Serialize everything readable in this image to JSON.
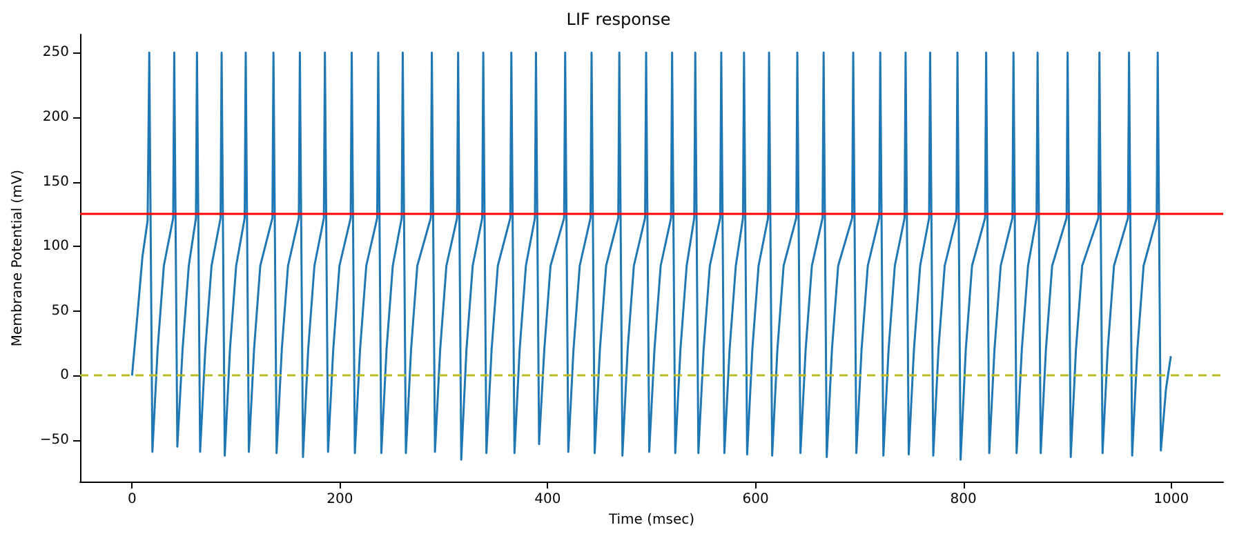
{
  "chart_data": {
    "type": "line",
    "title": "LIF response",
    "xlabel": "Time (msec)",
    "ylabel": "Membrane Potential (mV)",
    "xlim": [
      -50,
      1050
    ],
    "xticks": [
      0,
      200,
      400,
      600,
      800,
      1000
    ],
    "ylim": [
      -82,
      264
    ],
    "yticks": [
      -50,
      0,
      50,
      100,
      150,
      200,
      250
    ],
    "grid": false,
    "marker": "none",
    "line_style": "solid",
    "series": [
      {
        "color": "#1f77b4",
        "x": [
          0,
          5,
          10,
          15,
          16.6,
          19.6,
          24.6,
          30.6,
          39.6,
          40.6,
          43.6,
          48.6,
          54.6,
          61.5,
          62.5,
          65.5,
          70.5,
          76.5,
          85.2,
          86.2,
          89.2,
          94.2,
          100.2,
          108.4,
          109.4,
          112.4,
          117.4,
          123.4,
          135.1,
          136.1,
          139.1,
          144.1,
          150.1,
          160.5,
          161.5,
          164.5,
          169.5,
          175.5,
          184.6,
          185.6,
          188.6,
          193.6,
          199.6,
          210.4,
          211.4,
          214.4,
          219.4,
          225.4,
          235.9,
          236.9,
          239.9,
          244.9,
          250.9,
          259.5,
          260.5,
          263.5,
          268.5,
          274.5,
          287.5,
          288.5,
          291.5,
          296.5,
          302.5,
          312.8,
          313.8,
          316.8,
          321.8,
          327.8,
          337,
          338,
          341,
          346,
          352,
          364,
          365,
          368,
          373,
          379,
          387.7,
          388.7,
          391.7,
          396.7,
          402.7,
          415.8,
          416.8,
          419.8,
          424.8,
          430.8,
          441.2,
          442.2,
          445.2,
          450.2,
          456.2,
          467.9,
          468.9,
          471.9,
          476.9,
          482.9,
          493.7,
          494.7,
          497.7,
          502.7,
          508.7,
          518.7,
          519.7,
          522.7,
          527.7,
          533.7,
          541,
          542,
          545,
          550,
          556,
          566,
          567,
          570,
          575,
          581,
          587.9,
          588.9,
          591.9,
          596.9,
          602.9,
          612,
          613,
          616,
          621,
          627,
          639.2,
          640.2,
          643.2,
          648.2,
          654.2,
          664.5,
          665.5,
          668.5,
          673.5,
          679.5,
          693,
          694,
          697,
          702,
          708,
          719,
          720,
          723,
          728,
          734,
          743.4,
          744.4,
          747.4,
          752.4,
          758.4,
          767,
          768,
          771,
          776,
          782,
          793.3,
          794.3,
          797.3,
          802.3,
          808.3,
          820.9,
          821.9,
          824.9,
          829.9,
          835.9,
          847.2,
          848.2,
          851.2,
          856.2,
          862.2,
          870.4,
          871.4,
          874.4,
          879.4,
          885.4,
          899.3,
          900.3,
          903.3,
          908.3,
          914.3,
          929.9,
          930.9,
          933.9,
          938.9,
          944.9,
          958.4,
          959.4,
          962.4,
          967.4,
          973.4,
          986,
          987,
          990,
          995,
          999.6
        ],
        "values": [
          0,
          45,
          92,
          120,
          250,
          -59,
          20,
          85,
          122,
          250,
          -55,
          20,
          85,
          122,
          250,
          -59,
          20,
          85,
          122,
          250,
          -62,
          20,
          85,
          122,
          250,
          -59,
          20,
          85,
          122,
          250,
          -60,
          20,
          85,
          122,
          250,
          -63,
          20,
          85,
          122,
          250,
          -59,
          20,
          85,
          122,
          250,
          -60,
          20,
          85,
          122,
          250,
          -60,
          20,
          85,
          122,
          250,
          -60,
          20,
          85,
          122,
          250,
          -59,
          20,
          85,
          122,
          250,
          -65,
          20,
          85,
          122,
          250,
          -60,
          20,
          85,
          122,
          250,
          -60,
          20,
          85,
          122,
          250,
          -53,
          20,
          85,
          122,
          250,
          -59,
          20,
          85,
          122,
          250,
          -60,
          20,
          85,
          122,
          250,
          -62,
          20,
          85,
          122,
          250,
          -59,
          20,
          85,
          122,
          250,
          -60,
          20,
          85,
          122,
          250,
          -60,
          20,
          85,
          122,
          250,
          -60,
          20,
          85,
          122,
          250,
          -61,
          20,
          85,
          122,
          250,
          -62,
          20,
          85,
          122,
          250,
          -60,
          20,
          85,
          122,
          250,
          -63,
          20,
          85,
          122,
          250,
          -60,
          20,
          85,
          122,
          250,
          -62,
          20,
          85,
          122,
          250,
          -61,
          20,
          85,
          122,
          250,
          -62,
          20,
          85,
          122,
          250,
          -65,
          20,
          85,
          122,
          250,
          -60,
          20,
          85,
          122,
          250,
          -60,
          20,
          85,
          122,
          250,
          -60,
          20,
          85,
          122,
          250,
          -63,
          20,
          85,
          122,
          250,
          -60,
          20,
          85,
          122,
          250,
          -62,
          20,
          85,
          122,
          250,
          -58,
          -10,
          15
        ]
      }
    ],
    "ref_lines": [
      {
        "axis": "y",
        "value": 125,
        "color": "#ff0000",
        "line_style": "solid"
      },
      {
        "axis": "y",
        "value": 0,
        "color": "#bcbd22",
        "line_style": "dashed"
      }
    ]
  }
}
